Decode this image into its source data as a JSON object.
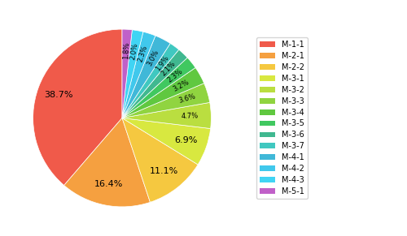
{
  "chart_data": {
    "type": "pie",
    "categories": [
      "M-1-1",
      "M-2-1",
      "M-2-2",
      "M-3-1",
      "M-3-2",
      "M-3-3",
      "M-3-4",
      "M-3-5",
      "M-3-6",
      "M-3-7",
      "M-4-1",
      "M-4-2",
      "M-4-3",
      "M-5-1"
    ],
    "values": [
      38.7,
      16.4,
      11.1,
      6.9,
      4.7,
      3.6,
      3.2,
      2.3,
      2.1,
      1.9,
      3.0,
      2.3,
      2.0,
      1.8
    ],
    "value_labels": [
      "38.7%",
      "16.4%",
      "11.1%",
      "6.9%",
      "4.7%",
      "3.6%",
      "3.2%",
      "2.3%",
      "2.1%",
      "1.9%",
      "3.0%",
      "2.3%",
      "2.0%",
      "1.8%"
    ],
    "colors": [
      "#F05A4A",
      "#F5A040",
      "#F5C840",
      "#D8E840",
      "#BADE40",
      "#90D440",
      "#60C840",
      "#40C860",
      "#40B890",
      "#40C8C0",
      "#40B8D8",
      "#40C8EC",
      "#40D4F4",
      "#C060C8"
    ],
    "data_labels": true,
    "legend": "center left"
  }
}
